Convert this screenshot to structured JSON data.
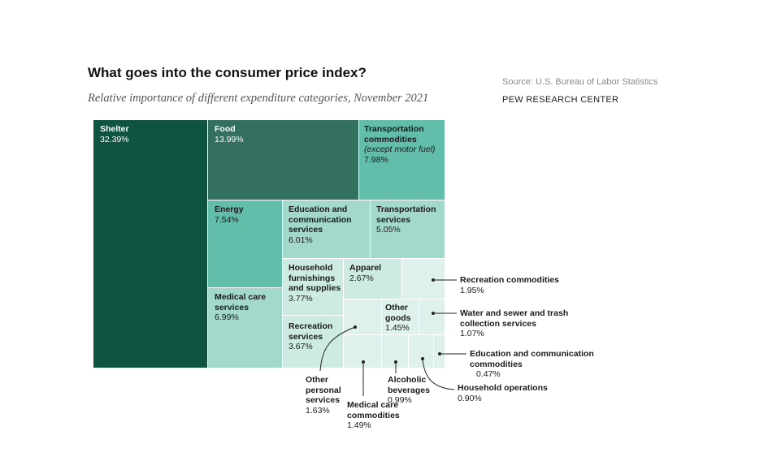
{
  "header": {
    "title": "What goes into the consumer price index?",
    "subtitle": "Relative importance of different expenditure categories, November 2021",
    "source": "Source: U.S. Bureau of Labor Statistics",
    "brand": "PEW RESEARCH CENTER"
  },
  "colors": {
    "shelter": "#0e5441",
    "food": "#33705f",
    "mid": "#62bdaa",
    "light": "#a3d8cd",
    "pale": "#cdeae3",
    "palest": "#dff1ec"
  },
  "chart_data": {
    "type": "treemap",
    "title": "What goes into the consumer price index?",
    "subtitle": "Relative importance of different expenditure categories, November 2021",
    "unit": "%",
    "items": [
      {
        "id": "shelter",
        "name": "Shelter",
        "value": 32.39,
        "label": "32.39%"
      },
      {
        "id": "food",
        "name": "Food",
        "value": 13.99,
        "label": "13.99%"
      },
      {
        "id": "transport_commodities",
        "name": "Transportation commodities",
        "note": "(except motor fuel)",
        "value": 7.98,
        "label": "7.98%"
      },
      {
        "id": "energy",
        "name": "Energy",
        "value": 7.54,
        "label": "7.54%"
      },
      {
        "id": "medical_services",
        "name": "Medical care services",
        "value": 6.99,
        "label": "6.99%"
      },
      {
        "id": "edu_comm_services",
        "name": "Education and communication services",
        "value": 6.01,
        "label": "6.01%"
      },
      {
        "id": "transport_services",
        "name": "Transportation services",
        "value": 5.05,
        "label": "5.05%"
      },
      {
        "id": "household_furnishings",
        "name": "Household furnishings and supplies",
        "value": 3.77,
        "label": "3.77%"
      },
      {
        "id": "recreation_services",
        "name": "Recreation services",
        "value": 3.67,
        "label": "3.67%"
      },
      {
        "id": "apparel",
        "name": "Apparel",
        "value": 2.67,
        "label": "2.67%"
      },
      {
        "id": "recreation_commodities",
        "name": "Recreation commodities",
        "value": 1.95,
        "label": "1.95%"
      },
      {
        "id": "other_personal_services",
        "name": "Other personal services",
        "value": 1.63,
        "label": "1.63%"
      },
      {
        "id": "medical_commodities",
        "name": "Medical care commodities",
        "value": 1.49,
        "label": "1.49%"
      },
      {
        "id": "other_goods",
        "name": "Other goods",
        "value": 1.45,
        "label": "1.45%"
      },
      {
        "id": "water_sewer",
        "name": "Water and sewer and trash collection services",
        "value": 1.07,
        "label": "1.07%"
      },
      {
        "id": "alcoholic_beverages",
        "name": "Alcoholic beverages",
        "value": 0.99,
        "label": "0.99%"
      },
      {
        "id": "household_operations",
        "name": "Household operations",
        "value": 0.9,
        "label": "0.90%"
      },
      {
        "id": "edu_comm_commodities",
        "name": "Education and communication commodities",
        "value": 0.47,
        "label": "0.47%"
      }
    ]
  }
}
